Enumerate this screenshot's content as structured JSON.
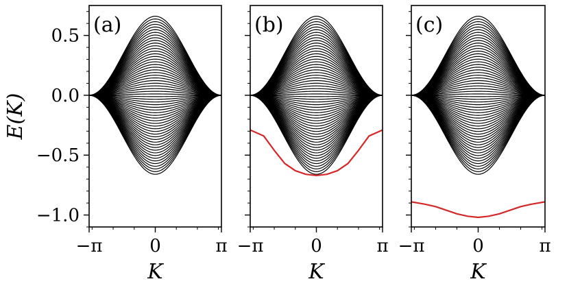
{
  "chart_data": [
    {
      "type": "line",
      "panel_label": "(a)",
      "xlabel": "K",
      "ylabel": "E(K)",
      "xlim": [
        -3.14159,
        3.14159
      ],
      "ylim": [
        -1.1,
        0.75
      ],
      "xticks": [
        {
          "value": -3.14159,
          "label": "−π"
        },
        {
          "value": 0,
          "label": "0"
        },
        {
          "value": 3.14159,
          "label": "π"
        }
      ],
      "yticks": [
        {
          "value": 0.5,
          "label": "0.5"
        },
        {
          "value": 0.0,
          "label": "0.0"
        },
        {
          "value": -0.5,
          "label": "−0.5"
        },
        {
          "value": -1.0,
          "label": "−1.0"
        }
      ],
      "bulk_band": {
        "band_count": 60,
        "max_energy_at_K0": 0.66,
        "energy_at_zone_edge": 0.0,
        "color": "#000000"
      },
      "edge_states": []
    },
    {
      "type": "line",
      "panel_label": "(b)",
      "xlabel": "K",
      "xlim": [
        -3.14159,
        3.14159
      ],
      "ylim": [
        -1.1,
        0.75
      ],
      "xticks": [
        {
          "value": -3.14159,
          "label": "−π"
        },
        {
          "value": 0,
          "label": "0"
        },
        {
          "value": 3.14159,
          "label": "π"
        }
      ],
      "bulk_band": {
        "band_count": 60,
        "max_energy_at_K0": 0.66,
        "energy_at_zone_edge": 0.0,
        "color": "#000000"
      },
      "edge_states": [
        {
          "color": "#d62728",
          "x": [
            -3.14,
            -2.5,
            -2.0,
            -1.5,
            -1.0,
            -0.5,
            0.0,
            0.5,
            1.0,
            1.5,
            2.0,
            2.5,
            3.14
          ],
          "y": [
            -0.29,
            -0.34,
            -0.46,
            -0.57,
            -0.63,
            -0.66,
            -0.67,
            -0.66,
            -0.63,
            -0.57,
            -0.46,
            -0.34,
            -0.29
          ]
        }
      ]
    },
    {
      "type": "line",
      "panel_label": "(c)",
      "xlabel": "K",
      "xlim": [
        -3.14159,
        3.14159
      ],
      "ylim": [
        -1.1,
        0.75
      ],
      "xticks": [
        {
          "value": -3.14159,
          "label": "−π"
        },
        {
          "value": 0,
          "label": "0"
        },
        {
          "value": 3.14159,
          "label": "π"
        }
      ],
      "bulk_band": {
        "band_count": 60,
        "max_energy_at_K0": 0.66,
        "energy_at_zone_edge": 0.0,
        "color": "#000000"
      },
      "edge_states": [
        {
          "color": "#d62728",
          "x": [
            -3.14,
            -2.5,
            -2.0,
            -1.5,
            -1.0,
            -0.5,
            0.0,
            0.5,
            1.0,
            1.5,
            2.0,
            2.5,
            3.14
          ],
          "y": [
            -0.89,
            -0.91,
            -0.93,
            -0.96,
            -0.99,
            -1.01,
            -1.02,
            -1.01,
            -0.99,
            -0.96,
            -0.93,
            -0.91,
            -0.89
          ]
        }
      ]
    }
  ]
}
